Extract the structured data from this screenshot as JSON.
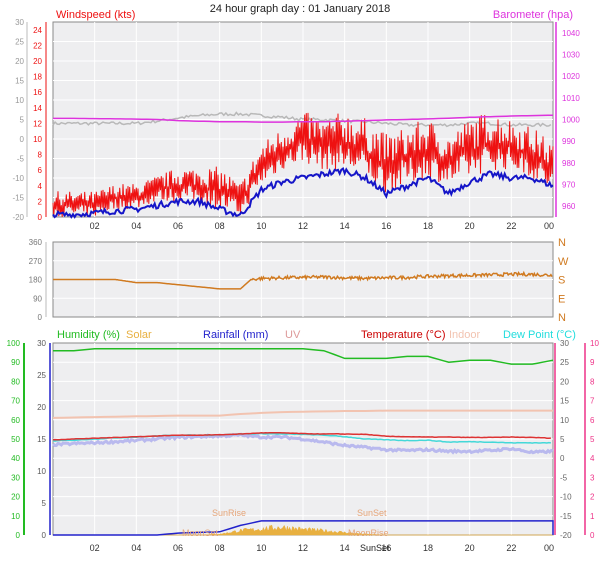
{
  "title": "24 hour graph day : 01 January 2018",
  "colors": {
    "plot_bg": "#eeeef0",
    "grid": "#ffffff",
    "frame": "#8a8a8a",
    "wind": "#ee1111",
    "gust_avg": "#1515c8",
    "baro": "#dd33dd",
    "grey_line": "#b8b8b8",
    "dir": "#d07a20",
    "humidity": "#22bb22",
    "solar": "#e8b040",
    "rain": "#2222cc",
    "uv": "#dd9999",
    "temperature": "#cc0000",
    "indoor": "#f2c3b0",
    "dewpoint": "#22dddd",
    "temp_trace": "#dd3333",
    "dew_trace": "#44d8d8",
    "lavender": "#b9b9ee",
    "humidity_axis": "#22bb22",
    "rain_axis": "#5a5a5a",
    "temp_axis": "#ee3388",
    "sun_text": "#e6a67a"
  },
  "x_ticks": [
    "02",
    "04",
    "06",
    "08",
    "10",
    "12",
    "14",
    "16",
    "18",
    "20",
    "22",
    "00"
  ],
  "panels": {
    "wind": {
      "label_left": "Windspeed (kts)",
      "label_right": "Barometer (hpa)",
      "left_axis_outer": [
        "30",
        "25",
        "20",
        "15",
        "10",
        "5",
        "0",
        "-5",
        "-10",
        "-15",
        "-20"
      ],
      "left_axis_inner": [
        "24",
        "22",
        "20",
        "18",
        "16",
        "14",
        "12",
        "10",
        "8",
        "6",
        "4",
        "2",
        "0"
      ],
      "right_axis": [
        "1040",
        "1030",
        "1020",
        "1010",
        "1000",
        "990",
        "980",
        "970",
        "960"
      ]
    },
    "direction": {
      "left_axis": [
        "360",
        "270",
        "180",
        "90",
        "0"
      ],
      "compass": [
        "N",
        "W",
        "S",
        "E",
        "N"
      ]
    },
    "multi": {
      "legend": [
        {
          "text": "Humidity (%)",
          "color_key": "humidity"
        },
        {
          "text": "Solar",
          "color_key": "solar"
        },
        {
          "text": "Rainfall (mm)",
          "color_key": "rain"
        },
        {
          "text": "UV",
          "color_key": "uv"
        },
        {
          "text": "Temperature (°C)",
          "color_key": "temperature"
        },
        {
          "text": "Indoor",
          "color_key": "indoor"
        },
        {
          "text": "Dew Point (°C)",
          "color_key": "dewpoint"
        }
      ],
      "humidity_axis": [
        "100",
        "90",
        "80",
        "70",
        "60",
        "50",
        "40",
        "30",
        "20",
        "10",
        "0"
      ],
      "rain_axis": [
        "30",
        "25",
        "20",
        "15",
        "10",
        "5",
        "0"
      ],
      "temp_axis": [
        "30",
        "25",
        "20",
        "15",
        "10",
        "5",
        "0",
        "-5",
        "-10",
        "-15",
        "-20"
      ],
      "uv_axis": [
        "10",
        "9",
        "8",
        "7",
        "6",
        "5",
        "4",
        "3",
        "2",
        "1",
        "0"
      ],
      "annotations": [
        "SunRise",
        "SunSet",
        "MoonSet",
        "MoonRise",
        "SunSet"
      ]
    }
  },
  "chart_data": [
    {
      "type": "line",
      "title": "24 hour graph day : 01 January 2018",
      "ylabel": "Windspeed (kts)",
      "y2label": "Barometer (hpa)",
      "ylim": [
        0,
        25
      ],
      "y2lim": [
        955,
        1045
      ],
      "x_hours": [
        0,
        1,
        2,
        3,
        4,
        5,
        6,
        7,
        8,
        9,
        10,
        11,
        12,
        13,
        14,
        15,
        16,
        17,
        18,
        19,
        20,
        21,
        22,
        23,
        24
      ],
      "series": [
        {
          "name": "Windspeed (kts)",
          "color_key": "wind",
          "role": "wind_hi",
          "values": [
            3,
            3,
            3,
            4,
            4,
            5,
            6,
            6,
            6,
            4,
            9,
            11,
            13,
            12,
            13,
            12,
            10,
            11,
            12,
            10,
            12,
            13,
            12,
            11,
            9
          ]
        },
        {
          "color_key": "wind",
          "role": "wind_lo",
          "values": [
            0,
            0,
            0,
            1,
            1,
            2,
            2,
            2,
            1,
            0,
            4,
            6,
            7,
            6,
            6,
            5,
            3,
            4,
            5,
            4,
            5,
            6,
            6,
            5,
            3
          ]
        },
        {
          "color_key": "gust_avg",
          "values": [
            0.3,
            0.3,
            0.5,
            0.8,
            1,
            1.5,
            2,
            2,
            1,
            0.2,
            3.5,
            4.5,
            5,
            5.5,
            6,
            5,
            3,
            4,
            5,
            3,
            4.5,
            5.5,
            5,
            5,
            4
          ]
        },
        {
          "name": "Barometer (hpa)",
          "color_key": "baro",
          "values": [
            1000.5,
            1000.5,
            1000.4,
            1000.3,
            1000.2,
            1000,
            999.5,
            999.2,
            999,
            999,
            998.8,
            998.8,
            999,
            999,
            999.2,
            999.5,
            999.8,
            1000,
            1000.3,
            1000.6,
            1001,
            1001.3,
            1001.6,
            1001.8,
            1002
          ]
        },
        {
          "color_key": "grey_line",
          "values": [
            12,
            12,
            12,
            12,
            12,
            12.3,
            12.7,
            13,
            13.2,
            13.2,
            13,
            12.8,
            12.5,
            12.5,
            12.3,
            12.2,
            12,
            11.8,
            11.8,
            11.8,
            12,
            12,
            11.8,
            11.8,
            11.8
          ]
        }
      ]
    },
    {
      "type": "scatter",
      "ylabel": "Wind direction",
      "ylim": [
        0,
        360
      ],
      "x_hours": [
        0,
        1,
        2,
        3,
        4,
        5,
        6,
        7,
        8,
        9,
        9.5,
        10,
        11,
        12,
        13,
        14,
        15,
        16,
        17,
        18,
        19,
        20,
        21,
        22,
        23,
        24
      ],
      "series": [
        {
          "color_key": "dir",
          "values": [
            180,
            180,
            180,
            180,
            165,
            165,
            155,
            145,
            135,
            135,
            180,
            185,
            188,
            190,
            192,
            188,
            185,
            188,
            190,
            195,
            198,
            200,
            202,
            205,
            205,
            200
          ]
        }
      ]
    },
    {
      "type": "line",
      "ylabel": "Humidity (%)",
      "ylim": [
        0,
        100
      ],
      "x_hours": [
        0,
        1,
        2,
        3,
        4,
        5,
        6,
        7,
        8,
        9,
        10,
        11,
        12,
        13,
        14,
        15,
        16,
        17,
        18,
        19,
        20,
        21,
        22,
        23,
        24
      ],
      "series": [
        {
          "name": "Humidity (%)",
          "color_key": "humidity",
          "values": [
            96,
            96,
            97,
            97,
            97,
            97,
            97,
            97,
            97,
            97,
            97,
            97,
            97,
            96,
            92,
            92,
            92,
            93,
            93,
            90,
            91,
            91,
            89,
            89,
            91
          ]
        },
        {
          "name": "Temperature (°C)",
          "color_key": "temp_trace",
          "axis": "temp",
          "values": [
            4.8,
            5,
            5.2,
            5.4,
            5.6,
            5.8,
            6.0,
            6.0,
            6.1,
            6.3,
            6.6,
            6.6,
            6.4,
            6.3,
            6.3,
            6.2,
            5.7,
            5.6,
            5.5,
            5.5,
            5.4,
            5.4,
            5.5,
            5.4,
            5.2
          ]
        },
        {
          "name": "Dew Point (°C)",
          "color_key": "dew_trace",
          "axis": "temp",
          "values": [
            4.5,
            4.7,
            5.0,
            5.3,
            5.5,
            5.8,
            6.0,
            6.0,
            6.1,
            6.3,
            6.4,
            6.3,
            6.2,
            6.0,
            5.6,
            5.0,
            4.8,
            4.6,
            4.7,
            4.2,
            4.3,
            4.2,
            4.0,
            4.0,
            4.0
          ]
        },
        {
          "color_key": "lavender",
          "axis": "temp",
          "values": [
            3.5,
            3.8,
            4.0,
            4.3,
            4.6,
            5.0,
            5.4,
            5.6,
            5.8,
            6.0,
            5.5,
            5.5,
            5.0,
            4.2,
            3.3,
            2.8,
            2.2,
            2.0,
            2.2,
            1.8,
            1.8,
            2.0,
            2.5,
            1.5,
            1.8
          ]
        },
        {
          "name": "Indoor",
          "color_key": "indoor",
          "axis": "temp",
          "values": [
            10.5,
            10.6,
            10.7,
            10.8,
            10.9,
            11.0,
            11.1,
            11.1,
            11.1,
            11.5,
            11.8,
            12.0,
            12.1,
            12.2,
            12.3,
            12.3,
            12.4,
            12.4,
            12.4,
            12.4,
            12.4,
            12.4,
            12.4,
            12.4,
            12.4
          ]
        },
        {
          "name": "Rainfall (mm)",
          "color_key": "rain",
          "axis": "rain",
          "values": [
            0,
            0,
            0,
            0,
            0,
            0,
            0.3,
            0.4,
            0.5,
            1.5,
            2.2,
            2.2,
            2.2,
            2.2,
            2.2,
            2.2,
            2.2,
            2.2,
            2.2,
            2.2,
            2.2,
            2.2,
            2.2,
            2.2,
            2.2
          ]
        },
        {
          "name": "Solar",
          "color_key": "solar",
          "axis": "humidity",
          "values": [
            0,
            0,
            0,
            0,
            0,
            0,
            0,
            0,
            0.5,
            2.5,
            3.5,
            4.5,
            3.2,
            2.5,
            1.5,
            0.5,
            0,
            0,
            0,
            0,
            0,
            0,
            0,
            0,
            0
          ]
        }
      ]
    }
  ]
}
